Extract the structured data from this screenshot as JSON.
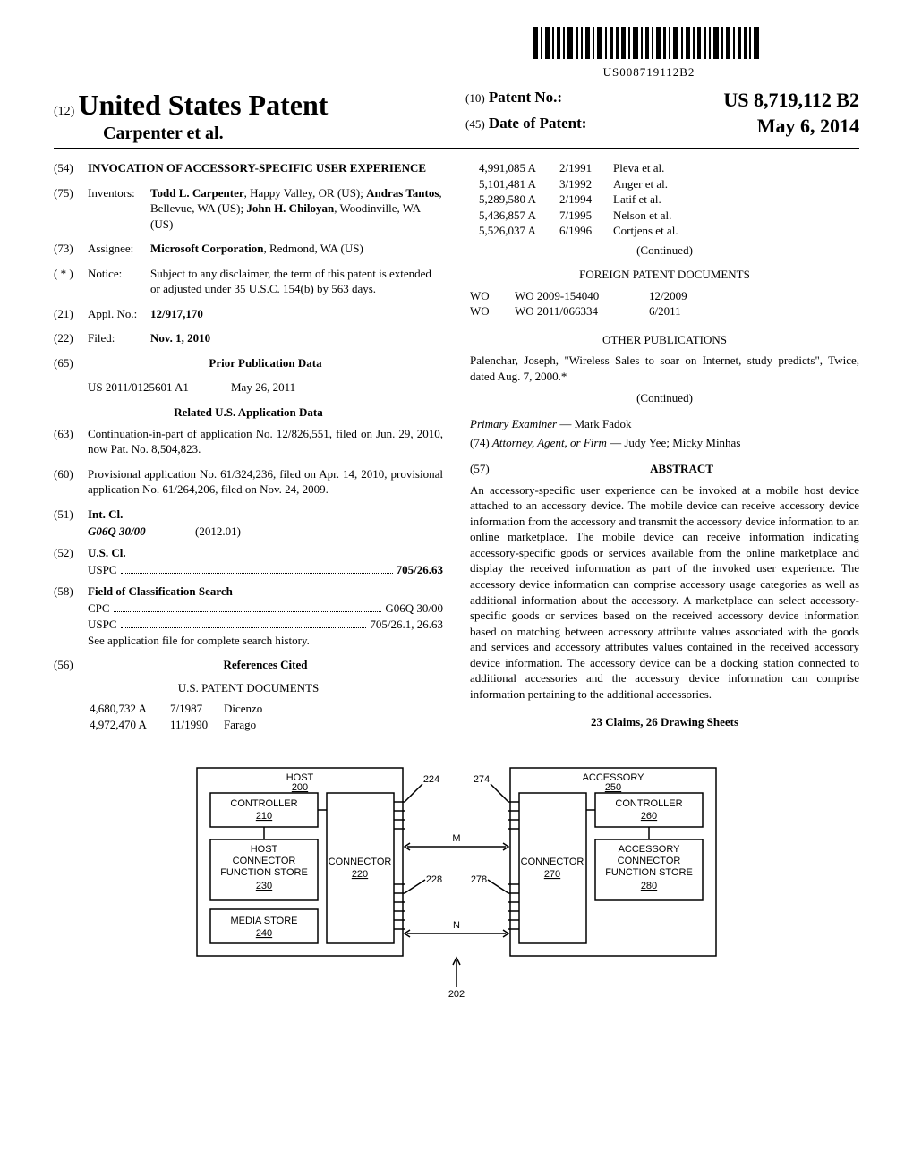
{
  "barcode_text": "US008719112B2",
  "header": {
    "sup12": "(12)",
    "title": "United States Patent",
    "authors": "Carpenter et al.",
    "patent_no_label_sup": "(10)",
    "patent_no_label": "Patent No.:",
    "patent_no": "US 8,719,112 B2",
    "date_label_sup": "(45)",
    "date_label": "Date of Patent:",
    "date": "May 6, 2014"
  },
  "left": {
    "f54_num": "(54)",
    "f54_val": "INVOCATION OF ACCESSORY-SPECIFIC USER EXPERIENCE",
    "f75_num": "(75)",
    "f75_lab": "Inventors:",
    "f75_val": "Todd L. Carpenter, Happy Valley, OR (US); Andras Tantos, Bellevue, WA (US); John H. Chiloyan, Woodinville, WA (US)",
    "f73_num": "(73)",
    "f73_lab": "Assignee:",
    "f73_val": "Microsoft Corporation, Redmond, WA (US)",
    "fstar_num": "( * )",
    "fstar_lab": "Notice:",
    "fstar_val": "Subject to any disclaimer, the term of this patent is extended or adjusted under 35 U.S.C. 154(b) by 563 days.",
    "f21_num": "(21)",
    "f21_lab": "Appl. No.:",
    "f21_val": "12/917,170",
    "f22_num": "(22)",
    "f22_lab": "Filed:",
    "f22_val": "Nov. 1, 2010",
    "f65_num": "(65)",
    "f65_head": "Prior Publication Data",
    "f65_pub": "US 2011/0125601 A1",
    "f65_date": "May 26, 2011",
    "related_head": "Related U.S. Application Data",
    "f63_num": "(63)",
    "f63_val": "Continuation-in-part of application No. 12/826,551, filed on Jun. 29, 2010, now Pat. No. 8,504,823.",
    "f60_num": "(60)",
    "f60_val": "Provisional application No. 61/324,236, filed on Apr. 14, 2010, provisional application No. 61/264,206, filed on Nov. 24, 2009.",
    "f51_num": "(51)",
    "f51_lab": "Int. Cl.",
    "f51_class": "G06Q 30/00",
    "f51_year": "(2012.01)",
    "f52_num": "(52)",
    "f52_lab": "U.S. Cl.",
    "f52_uspc_lab": "USPC",
    "f52_uspc_val": "705/26.63",
    "f58_num": "(58)",
    "f58_lab": "Field of Classification Search",
    "f58_cpc_lab": "CPC",
    "f58_cpc_val": "G06Q 30/00",
    "f58_uspc_lab": "USPC",
    "f58_uspc_val": "705/26.1, 26.63",
    "f58_note": "See application file for complete search history.",
    "f56_num": "(56)",
    "f56_head": "References Cited",
    "us_docs_head": "U.S. PATENT DOCUMENTS",
    "us_docs": [
      {
        "n": "4,680,732 A",
        "d": "7/1987",
        "a": "Dicenzo"
      },
      {
        "n": "4,972,470 A",
        "d": "11/1990",
        "a": "Farago"
      }
    ]
  },
  "right": {
    "us_docs": [
      {
        "n": "4,991,085 A",
        "d": "2/1991",
        "a": "Pleva et al."
      },
      {
        "n": "5,101,481 A",
        "d": "3/1992",
        "a": "Anger et al."
      },
      {
        "n": "5,289,580 A",
        "d": "2/1994",
        "a": "Latif et al."
      },
      {
        "n": "5,436,857 A",
        "d": "7/1995",
        "a": "Nelson et al."
      },
      {
        "n": "5,526,037 A",
        "d": "6/1996",
        "a": "Cortjens et al."
      }
    ],
    "continued": "(Continued)",
    "foreign_head": "FOREIGN PATENT DOCUMENTS",
    "foreign_docs": [
      {
        "c": "WO",
        "n": "WO 2009-154040",
        "d": "12/2009"
      },
      {
        "c": "WO",
        "n": "WO 2011/066334",
        "d": "6/2011"
      }
    ],
    "other_head": "OTHER PUBLICATIONS",
    "other_text": "Palenchar, Joseph, \"Wireless Sales to soar on Internet, study predicts\", Twice, dated Aug. 7, 2000.*",
    "examiner_lab": "Primary Examiner",
    "examiner": "Mark Fadok",
    "attorney_lab": "Attorney, Agent, or Firm",
    "attorney": "Judy Yee; Micky Minhas",
    "f74_num": "(74)",
    "f57_num": "(57)",
    "abstract_head": "ABSTRACT",
    "abstract": "An accessory-specific user experience can be invoked at a mobile host device attached to an accessory device. The mobile device can receive accessory device information from the accessory and transmit the accessory device information to an online marketplace. The mobile device can receive information indicating accessory-specific goods or services available from the online marketplace and display the received information as part of the invoked user experience. The accessory device information can comprise accessory usage categories as well as additional information about the accessory. A marketplace can select accessory-specific goods or services based on the received accessory device information based on matching between accessory attribute values associated with the goods and services and accessory attributes values contained in the received accessory device information. The accessory device can be a docking station connected to additional accessories and the accessory device information can comprise information pertaining to the additional accessories.",
    "claims": "23 Claims, 26 Drawing Sheets"
  },
  "diagram": {
    "host": "HOST",
    "host_n": "200",
    "controller_l": "CONTROLLER",
    "controller_ln": "210",
    "host_conn_fn": "HOST\nCONNECTOR\nFUNCTION STORE",
    "host_conn_fn_n": "230",
    "media": "MEDIA STORE",
    "media_n": "240",
    "connector_l": "CONNECTOR",
    "connector_ln": "220",
    "lbl_224": "224",
    "lbl_274": "274",
    "lbl_228": "228",
    "lbl_278": "278",
    "lbl_m": "M",
    "lbl_n": "N",
    "lbl_202": "202",
    "accessory": "ACCESSORY",
    "accessory_n": "250",
    "controller_r": "CONTROLLER",
    "controller_rn": "260",
    "acc_conn_fn": "ACCESSORY\nCONNECTOR\nFUNCTION STORE",
    "acc_conn_fn_n": "280",
    "connector_r": "CONNECTOR",
    "connector_rn": "270"
  }
}
